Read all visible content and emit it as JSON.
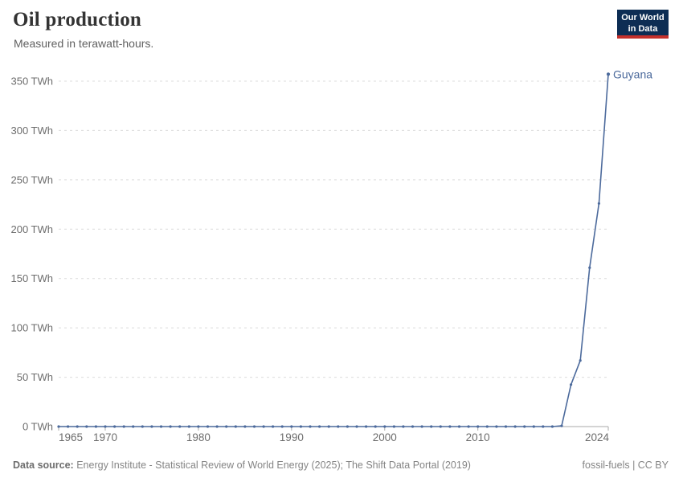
{
  "header": {
    "title": "Oil production",
    "subtitle": "Measured in terawatt-hours."
  },
  "logo": {
    "line1": "Our World",
    "line2": "in Data",
    "bg_color": "#0d2d54",
    "accent_color": "#c4302b"
  },
  "footer": {
    "source_label": "Data source:",
    "source_text": "Energy Institute - Statistical Review of World Energy (2025); The Shift Data Portal (2019)",
    "license": "fossil-fuels | CC BY"
  },
  "chart_data": {
    "type": "line",
    "title": "Oil production",
    "ylabel": "",
    "xlabel": "",
    "grid": "horizontal-dashed",
    "legend_position": "end-of-line-label",
    "xlim": [
      1965,
      2024
    ],
    "ylim": [
      0,
      350
    ],
    "x_ticks": [
      1965,
      1970,
      1980,
      1990,
      2000,
      2010,
      2024
    ],
    "y_ticks": [
      0,
      50,
      100,
      150,
      200,
      250,
      300,
      350
    ],
    "y_tick_suffix": " TWh",
    "colors": {
      "grid": "#dcdcdc",
      "axis": "#a9a9a9",
      "tick_text": "#6d6d6d"
    },
    "x": [
      1965,
      1966,
      1967,
      1968,
      1969,
      1970,
      1971,
      1972,
      1973,
      1974,
      1975,
      1976,
      1977,
      1978,
      1979,
      1980,
      1981,
      1982,
      1983,
      1984,
      1985,
      1986,
      1987,
      1988,
      1989,
      1990,
      1991,
      1992,
      1993,
      1994,
      1995,
      1996,
      1997,
      1998,
      1999,
      2000,
      2001,
      2002,
      2003,
      2004,
      2005,
      2006,
      2007,
      2008,
      2009,
      2010,
      2011,
      2012,
      2013,
      2014,
      2015,
      2016,
      2017,
      2018,
      2019,
      2020,
      2021,
      2022,
      2023,
      2024
    ],
    "series": [
      {
        "name": "Guyana",
        "color": "#4c6a9c",
        "values": [
          0,
          0,
          0,
          0,
          0,
          0,
          0,
          0,
          0,
          0,
          0,
          0,
          0,
          0,
          0,
          0,
          0,
          0,
          0,
          0,
          0,
          0,
          0,
          0,
          0,
          0,
          0,
          0,
          0,
          0,
          0,
          0,
          0,
          0,
          0,
          0,
          0,
          0,
          0,
          0,
          0,
          0,
          0,
          0,
          0,
          0,
          0,
          0,
          0,
          0,
          0,
          0,
          0,
          0,
          0.7,
          42.5,
          67,
          161,
          226,
          357
        ]
      }
    ]
  }
}
